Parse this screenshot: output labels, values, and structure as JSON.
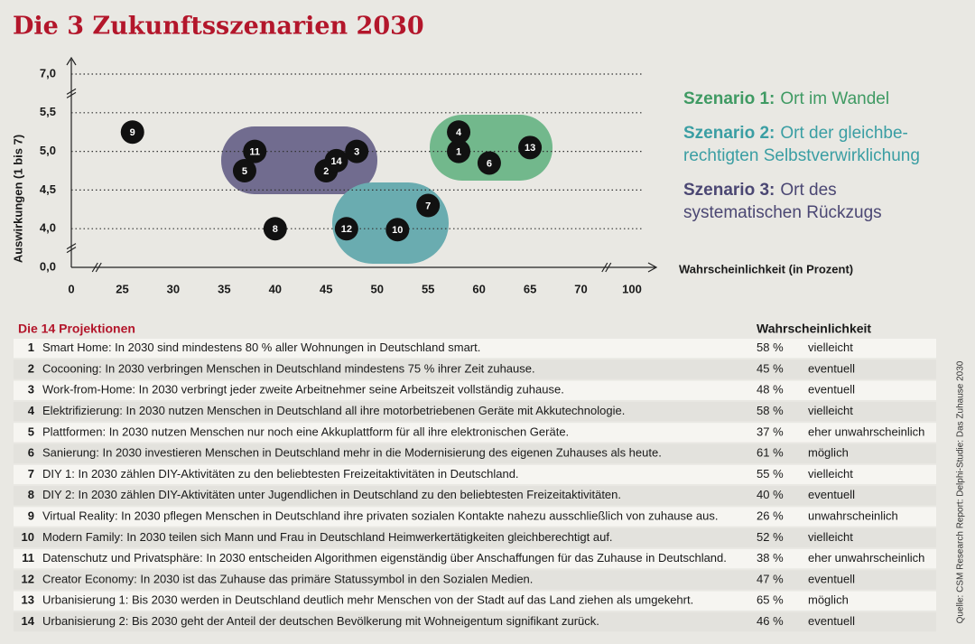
{
  "chart_data": {
    "type": "scatter",
    "title": "Die 3 Zukunftsszenarien 2030",
    "x_label": "Wahrscheinlichkeit (in Prozent)",
    "y_label": "Auswirkungen (1 bis 7)",
    "xlim": [
      0,
      100
    ],
    "ylim": [
      0,
      7
    ],
    "xticks": [
      0,
      25,
      30,
      35,
      40,
      45,
      50,
      55,
      60,
      65,
      70,
      100
    ],
    "yticks": [
      {
        "value": 0,
        "label": "0,0"
      },
      {
        "value": 4,
        "label": "4,0"
      },
      {
        "value": 4.5,
        "label": "4,5"
      },
      {
        "value": 5,
        "label": "5,0"
      },
      {
        "value": 5.5,
        "label": "5,5"
      },
      {
        "value": 7,
        "label": "7,0"
      }
    ],
    "grid": true,
    "point_color": "#111111",
    "labels": [
      "1",
      "2",
      "3",
      "4",
      "5",
      "6",
      "7",
      "8",
      "9",
      "10",
      "11",
      "12",
      "13",
      "14"
    ],
    "x": [
      58,
      45,
      48,
      58,
      37,
      61,
      55,
      40,
      26,
      52,
      38,
      47,
      65,
      46
    ],
    "y": [
      5.0,
      4.75,
      5.0,
      5.25,
      4.75,
      4.85,
      4.3,
      4.0,
      5.25,
      3.9,
      5.0,
      4.0,
      5.05,
      4.88
    ],
    "scenarios": [
      {
        "label": "Szenario 1:",
        "lines": [
          "Ort im Wandel"
        ],
        "color": "#3f9a63"
      },
      {
        "label": "Szenario 2:",
        "lines": [
          "Ort der gleichbe-",
          "rechtigten Selbstverwirklichung"
        ],
        "color": "#3a9ea3"
      },
      {
        "label": "Szenario 3:",
        "lines": [
          "Ort des",
          "systematischen Rückzugs"
        ],
        "color": "#4b4773"
      }
    ]
  },
  "table": {
    "title": "Die 14 Projektionen",
    "header": "Wahrscheinlichkeit",
    "rows": [
      [
        "1",
        "Smart Home: In 2030 sind mindestens 80 % aller Wohnungen in Deutschland smart.",
        "58 %",
        "vielleicht"
      ],
      [
        "2",
        "Cocooning: In 2030 verbringen Menschen in Deutschland mindestens 75 % ihrer Zeit zuhause.",
        "45 %",
        "eventuell"
      ],
      [
        "3",
        "Work-from-Home: In 2030 verbringt jeder zweite Arbeitnehmer seine Arbeitszeit vollständig zuhause.",
        "48 %",
        "eventuell"
      ],
      [
        "4",
        "Elektrifizierung: In 2030 nutzen Menschen in Deutschland all ihre motorbetriebenen Geräte mit Akkutechnologie.",
        "58 %",
        "vielleicht"
      ],
      [
        "5",
        "Plattformen: In 2030 nutzen Menschen nur noch eine Akkuplattform für all ihre elektronischen Geräte.",
        "37 %",
        "eher unwahrscheinlich"
      ],
      [
        "6",
        "Sanierung: In 2030 investieren Menschen in Deutschland mehr in die Modernisierung des eigenen Zuhauses als heute.",
        "61 %",
        "möglich"
      ],
      [
        "7",
        "DIY 1: In 2030 zählen DIY-Aktivitäten zu den beliebtesten Freizeitaktivitäten in Deutschland.",
        "55 %",
        "vielleicht"
      ],
      [
        "8",
        "DIY 2: In 2030 zählen DIY-Aktivitäten unter Jugendlichen in Deutschland zu den beliebtesten Freizeitaktivitäten.",
        "40 %",
        "eventuell"
      ],
      [
        "9",
        "Virtual Reality: In 2030 pflegen Menschen in Deutschland ihre privaten sozialen Kontakte nahezu ausschließlich von zuhause aus.",
        "26 %",
        "unwahrscheinlich"
      ],
      [
        "10",
        "Modern Family: In 2030 teilen sich Mann und Frau in Deutschland Heimwerkertätigkeiten gleichberechtigt auf.",
        "52 %",
        "vielleicht"
      ],
      [
        "11",
        "Datenschutz und Privatsphäre: In 2030 entscheiden Algorithmen eigenständig über Anschaffungen für das Zuhause in Deutschland.",
        "38 %",
        "eher unwahrscheinlich"
      ],
      [
        "12",
        "Creator Economy: In 2030 ist das Zuhause das primäre Statussymbol in den Sozialen Medien.",
        "47 %",
        "eventuell"
      ],
      [
        "13",
        "Urbanisierung 1: Bis 2030 werden in Deutschland deutlich mehr Menschen von der Stadt auf das Land ziehen als umgekehrt.",
        "65 %",
        "möglich"
      ],
      [
        "14",
        "Urbanisierung 2: Bis 2030 geht der Anteil der deutschen Bevölkerung mit Wohneigentum signifikant zurück.",
        "46 %",
        "eventuell"
      ]
    ]
  },
  "source": "Quelle: CSM Research Report: Delphi-Studie: Das Zuhause 2030"
}
